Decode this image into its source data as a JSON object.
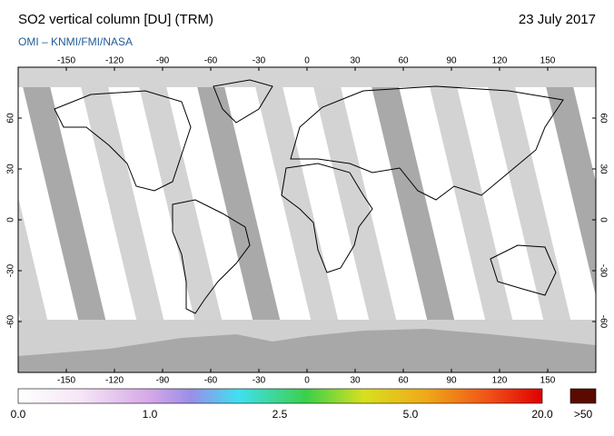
{
  "header": {
    "title": "SO2 vertical column [DU] (TRM)",
    "date": "23 July 2017",
    "source": "OMI  –  KNMI/FMI/NASA"
  },
  "map": {
    "xlim": [
      -180,
      180
    ],
    "ylim": [
      -90,
      90
    ],
    "xticks": [
      -150,
      -120,
      -90,
      -60,
      -30,
      0,
      30,
      60,
      90,
      120,
      150
    ],
    "yticks": [
      60,
      30,
      0,
      -30,
      -60
    ]
  },
  "colorbar": {
    "labels": [
      "0.0",
      "1.0",
      "2.5",
      "5.0",
      "20.0",
      ">50"
    ]
  }
}
